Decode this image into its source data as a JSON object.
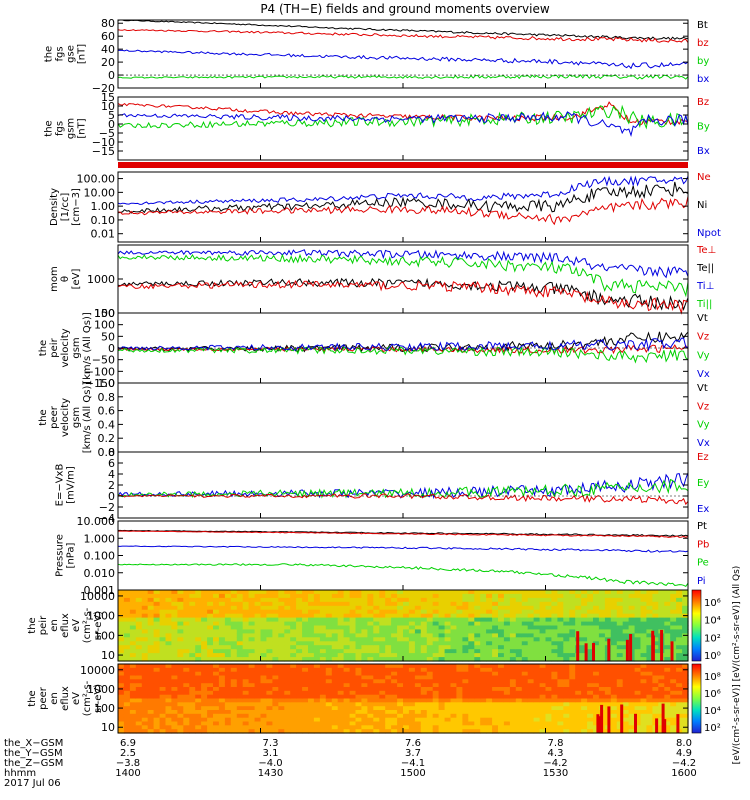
{
  "title": "P4 (TH−E) fields and ground moments overview",
  "colors": {
    "black": "#000000",
    "red": "#e00000",
    "green": "#00d000",
    "blue": "#0000e0"
  },
  "chart_data": [
    {
      "type": "line",
      "id": "fgs_gse",
      "ylabel": [
        "the",
        "fgs",
        "gse",
        "[nT]"
      ],
      "ylim": [
        -20,
        85
      ],
      "yticks": [
        "80",
        "60",
        "40",
        "20",
        "0",
        "−20"
      ],
      "ytick_values": [
        80,
        60,
        40,
        20,
        0,
        -20
      ],
      "legend": [
        "Bt",
        "bz",
        "by",
        "bx"
      ],
      "legend_colors": [
        "black",
        "red",
        "green",
        "blue"
      ],
      "series": [
        {
          "name": "Bt",
          "color": "black",
          "x": [
            0,
            0.2,
            0.4,
            0.6,
            0.78,
            0.88,
            1
          ],
          "y": [
            85,
            79,
            72,
            66,
            61,
            58,
            56
          ],
          "noise": 1
        },
        {
          "name": "bz",
          "color": "red",
          "x": [
            0,
            0.2,
            0.4,
            0.6,
            0.78,
            0.88,
            1
          ],
          "y": [
            70,
            67,
            63,
            59,
            56,
            55,
            52
          ],
          "noise": 1.5
        },
        {
          "name": "by",
          "color": "green",
          "x": [
            0,
            0.3,
            0.6,
            0.8,
            0.9,
            1
          ],
          "y": [
            -4,
            -3,
            -3,
            -2,
            -3,
            -3
          ],
          "noise": 1.5
        },
        {
          "name": "bx",
          "color": "blue",
          "x": [
            0,
            0.2,
            0.4,
            0.6,
            0.8,
            0.88,
            1
          ],
          "y": [
            38,
            33,
            28,
            24,
            20,
            14,
            16
          ],
          "noise": 2
        }
      ]
    },
    {
      "type": "line",
      "id": "fgs_gsm",
      "ylabel": [
        "the",
        "fgs",
        "gsm",
        "[nT]"
      ],
      "ylim": [
        -20,
        15
      ],
      "yticks": [
        "15",
        "10",
        "5",
        "0",
        "−5",
        "−10",
        "−15"
      ],
      "ytick_values": [
        15,
        10,
        5,
        0,
        -5,
        -10,
        -15
      ],
      "legend": [
        "Bz",
        "By",
        "Bx"
      ],
      "legend_colors": [
        "red",
        "green",
        "blue"
      ],
      "series": [
        {
          "name": "Bz",
          "color": "red",
          "x": [
            0,
            0.15,
            0.3,
            0.5,
            0.7,
            0.8,
            0.86,
            0.9,
            1
          ],
          "y": [
            11,
            9,
            6,
            4,
            3,
            4,
            11,
            1,
            2
          ],
          "noise": 1
        },
        {
          "name": "By",
          "color": "green",
          "x": [
            0,
            0.2,
            0.4,
            0.6,
            0.8,
            0.87,
            0.92,
            1
          ],
          "y": [
            -1,
            0,
            1,
            2,
            4,
            8,
            1,
            2
          ],
          "noise": 2
        },
        {
          "name": "Bx",
          "color": "blue",
          "x": [
            0,
            0.2,
            0.4,
            0.6,
            0.8,
            0.9,
            0.93,
            1
          ],
          "y": [
            5,
            4,
            3,
            3,
            4,
            -5,
            2,
            2
          ],
          "noise": 1.5
        }
      ]
    },
    {
      "type": "line",
      "id": "density",
      "log": true,
      "ylabel": [
        "Density",
        "[1/cc]",
        "[cm−3]"
      ],
      "ylim": [
        0.0025,
        300
      ],
      "yticks": [
        "100.00",
        "10.00",
        "1.00",
        "0.10",
        "0.01"
      ],
      "ytick_values": [
        100,
        10,
        1,
        0.1,
        0.01
      ],
      "legend": [
        "Ne",
        "Ni",
        "Npot"
      ],
      "legend_colors": [
        "red",
        "black",
        "blue"
      ],
      "series": [
        {
          "name": "Npot",
          "color": "blue",
          "x": [
            0,
            0.35,
            0.5,
            0.65,
            0.78,
            0.85,
            1
          ],
          "y": [
            1.5,
            3,
            6,
            4,
            8,
            60,
            80
          ],
          "noise": 0.15
        },
        {
          "name": "Ni",
          "color": "black",
          "x": [
            0,
            0.35,
            0.5,
            0.65,
            0.78,
            0.85,
            1
          ],
          "y": [
            0.4,
            1,
            2,
            1,
            1,
            8,
            20
          ],
          "noise": 0.25
        },
        {
          "name": "Ne",
          "color": "red",
          "x": [
            0,
            0.35,
            0.5,
            0.65,
            0.78,
            0.85,
            1
          ],
          "y": [
            0.3,
            0.5,
            0.6,
            0.3,
            0.08,
            0.5,
            2
          ],
          "noise": 0.2
        }
      ]
    },
    {
      "type": "line",
      "id": "temperature",
      "log": true,
      "ylabel": [
        "mom",
        "θ",
        "[eV]"
      ],
      "ylim": [
        100,
        10000
      ],
      "yticks": [
        "1000",
        "100"
      ],
      "ytick_values": [
        1000,
        100
      ],
      "legend": [
        "Te⊥",
        "Te||",
        "Ti⊥",
        "Ti||"
      ],
      "legend_colors": [
        "red",
        "black",
        "blue",
        "green"
      ],
      "series": [
        {
          "name": "Ti⊥",
          "color": "blue",
          "x": [
            0,
            0.3,
            0.6,
            0.78,
            0.85,
            1
          ],
          "y": [
            6000,
            6000,
            5000,
            4000,
            2000,
            1500
          ],
          "noise": 0.08
        },
        {
          "name": "Ti||",
          "color": "green",
          "x": [
            0,
            0.3,
            0.6,
            0.78,
            0.85,
            1
          ],
          "y": [
            4500,
            4000,
            3000,
            2000,
            700,
            500
          ],
          "noise": 0.1
        },
        {
          "name": "Te||",
          "color": "black",
          "x": [
            0,
            0.3,
            0.6,
            0.78,
            0.85,
            1
          ],
          "y": [
            700,
            800,
            700,
            500,
            250,
            180
          ],
          "noise": 0.1
        },
        {
          "name": "Te⊥",
          "color": "red",
          "x": [
            0,
            0.3,
            0.6,
            0.78,
            0.85,
            1
          ],
          "y": [
            600,
            700,
            600,
            400,
            200,
            150
          ],
          "noise": 0.1
        }
      ]
    },
    {
      "type": "line",
      "id": "peir_velocity",
      "ylabel": [
        "the",
        "peir",
        "velocity",
        "gsm",
        "[km/s (All Qs)]"
      ],
      "ylim": [
        -150,
        150
      ],
      "yticks": [
        "150",
        "100",
        "50",
        "0",
        "−50",
        "−100",
        "−150"
      ],
      "ytick_values": [
        150,
        100,
        50,
        0,
        -50,
        -100,
        -150
      ],
      "legend": [
        "Vt",
        "Vz",
        "Vy",
        "Vx"
      ],
      "legend_colors": [
        "black",
        "red",
        "green",
        "blue"
      ],
      "series": [
        {
          "name": "Vt",
          "color": "black",
          "x": [
            0,
            0.5,
            0.78,
            0.9,
            1
          ],
          "y": [
            -5,
            0,
            10,
            40,
            50
          ],
          "noise": 12
        },
        {
          "name": "Vz",
          "color": "red",
          "x": [
            0,
            0.5,
            0.8,
            1
          ],
          "y": [
            -5,
            -5,
            -10,
            0
          ],
          "noise": 8
        },
        {
          "name": "Vy",
          "color": "green",
          "x": [
            0,
            0.5,
            0.8,
            0.9,
            1
          ],
          "y": [
            -10,
            -10,
            -20,
            -40,
            -30
          ],
          "noise": 12
        },
        {
          "name": "Vx",
          "color": "blue",
          "x": [
            0,
            0.5,
            0.8,
            1
          ],
          "y": [
            0,
            5,
            10,
            20
          ],
          "noise": 12
        }
      ]
    },
    {
      "type": "line",
      "id": "peer_velocity",
      "ylabel": [
        "the",
        "peer",
        "velocity",
        "gsm",
        "[km/s (All Qs)]"
      ],
      "ylim": [
        0,
        1
      ],
      "yticks": [
        "1.0",
        "0.8",
        "0.6",
        "0.4",
        "0.2",
        "0.0"
      ],
      "ytick_values": [
        1,
        0.8,
        0.6,
        0.4,
        0.2,
        0
      ],
      "legend": [
        "Vt",
        "Vz",
        "Vy",
        "Vx"
      ],
      "legend_colors": [
        "black",
        "red",
        "green",
        "blue"
      ],
      "series": []
    },
    {
      "type": "line",
      "id": "efield",
      "ylabel": [
        "E=−VxB",
        "[mV/m]"
      ],
      "ylim": [
        -4,
        8
      ],
      "yticks": [
        "8",
        "6",
        "4",
        "2",
        "0",
        "−2",
        "−4"
      ],
      "ytick_values": [
        8,
        6,
        4,
        2,
        0,
        -2,
        -4
      ],
      "legend": [
        "Ez",
        "Ey",
        "Ex"
      ],
      "legend_colors": [
        "red",
        "green",
        "blue"
      ],
      "series": [
        {
          "name": "Ex",
          "color": "blue",
          "x": [
            0,
            0.3,
            0.5,
            0.78,
            0.9,
            1
          ],
          "y": [
            0.3,
            0.5,
            0.5,
            1,
            2,
            3
          ],
          "noise": 0.6
        },
        {
          "name": "Ey",
          "color": "green",
          "x": [
            0,
            0.3,
            0.5,
            0.78,
            0.9,
            1
          ],
          "y": [
            0.2,
            0.5,
            0.5,
            1,
            1.5,
            2
          ],
          "noise": 0.6
        },
        {
          "name": "Ez",
          "color": "red",
          "x": [
            0,
            0.3,
            0.5,
            0.78,
            0.9,
            1
          ],
          "y": [
            0,
            0,
            0,
            -0.5,
            -0.5,
            -1
          ],
          "noise": 0.3
        }
      ]
    },
    {
      "type": "line",
      "id": "pressure",
      "log": true,
      "ylabel": [
        "Pressure",
        "[nPa]"
      ],
      "ylim": [
        0.001,
        10
      ],
      "yticks": [
        "10.000",
        "1.000",
        "0.100",
        "0.010",
        "0.001"
      ],
      "ytick_values": [
        10,
        1,
        0.1,
        0.01,
        0.001
      ],
      "legend": [
        "Pt",
        "Pb",
        "Pe",
        "Pi"
      ],
      "legend_colors": [
        "black",
        "red",
        "green",
        "blue"
      ],
      "series": [
        {
          "name": "Pt",
          "color": "black",
          "x": [
            0,
            0.5,
            1
          ],
          "y": [
            2.8,
            2,
            1.4
          ],
          "noise": 0.02
        },
        {
          "name": "Pb",
          "color": "red",
          "x": [
            0,
            0.5,
            1
          ],
          "y": [
            2.6,
            1.8,
            1.2
          ],
          "noise": 0.02
        },
        {
          "name": "Pi",
          "color": "blue",
          "x": [
            0,
            0.5,
            0.85,
            1
          ],
          "y": [
            0.35,
            0.28,
            0.2,
            0.16
          ],
          "noise": 0.03
        },
        {
          "name": "Pe",
          "color": "green",
          "x": [
            0,
            0.3,
            0.6,
            0.8,
            0.88,
            1
          ],
          "y": [
            0.03,
            0.03,
            0.015,
            0.006,
            0.003,
            0.002
          ],
          "noise": 0.05
        }
      ]
    },
    {
      "type": "heatmap",
      "id": "peir_en_eflux",
      "log": true,
      "ylabel": [
        "the",
        "peir",
        "en",
        "eflux",
        "eV",
        "(cm²-s-",
        "sr-eV)"
      ],
      "ylim": [
        5,
        20000
      ],
      "yticks": [
        "10000",
        "1000",
        "100",
        "10"
      ],
      "ytick_values": [
        10000,
        1000,
        100,
        10
      ]
    },
    {
      "type": "heatmap",
      "id": "peer_en_eflux",
      "log": true,
      "ylabel": [
        "the",
        "peer",
        "en",
        "eflux",
        "eV",
        "(cm²-s-",
        "sr-eV)"
      ],
      "ylim": [
        5,
        20000
      ],
      "yticks": [
        "10000",
        "1000",
        "100",
        "10"
      ],
      "ytick_values": [
        10000,
        1000,
        100,
        10
      ]
    }
  ],
  "colorbar": {
    "label": "[eV/(cm²-s-sr-eV)] [eV/(cm²-s-sr-eV)] (All Qs)",
    "top_ticks": [
      "10⁶",
      "10⁴",
      "10²",
      "10⁰"
    ],
    "bottom_ticks": [
      "10⁸",
      "10⁶",
      "10⁴",
      "10²"
    ]
  },
  "x_axis": {
    "rows": [
      {
        "label": "the_X−GSM",
        "values": [
          "6.9",
          "7.3",
          "7.6",
          "7.8",
          "8.0"
        ]
      },
      {
        "label": "the_Y−GSM",
        "values": [
          "2.5",
          "3.1",
          "3.7",
          "4.3",
          "4.9"
        ]
      },
      {
        "label": "the_Z−GSM",
        "values": [
          "−3.8",
          "−4.0",
          "−4.1",
          "−4.2",
          "−4.2"
        ]
      },
      {
        "label": "hhmm",
        "values": [
          "1400",
          "1430",
          "1500",
          "1530",
          "1600"
        ]
      }
    ],
    "date": "2017 Jul 06"
  }
}
